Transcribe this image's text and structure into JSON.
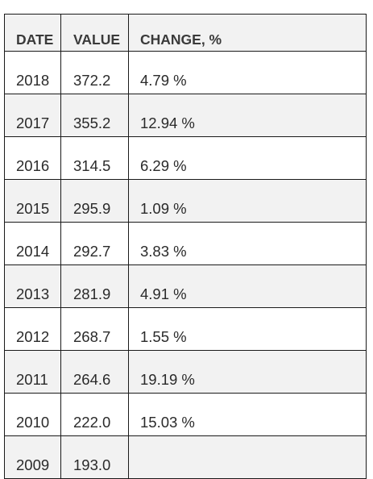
{
  "chart_data": {
    "type": "table",
    "columns": [
      "DATE",
      "VALUE",
      "CHANGE, %"
    ],
    "rows": [
      {
        "date": "2018",
        "value": "372.2",
        "change": "4.79 %"
      },
      {
        "date": "2017",
        "value": "355.2",
        "change": "12.94 %"
      },
      {
        "date": "2016",
        "value": "314.5",
        "change": "6.29 %"
      },
      {
        "date": "2015",
        "value": "295.9",
        "change": "1.09 %"
      },
      {
        "date": "2014",
        "value": "292.7",
        "change": "3.83 %"
      },
      {
        "date": "2013",
        "value": "281.9",
        "change": "4.91 %"
      },
      {
        "date": "2012",
        "value": "268.7",
        "change": "1.55 %"
      },
      {
        "date": "2011",
        "value": "264.6",
        "change": "19.19 %"
      },
      {
        "date": "2010",
        "value": "222.0",
        "change": "15.03 %"
      },
      {
        "date": "2009",
        "value": "193.0",
        "change": ""
      }
    ]
  }
}
